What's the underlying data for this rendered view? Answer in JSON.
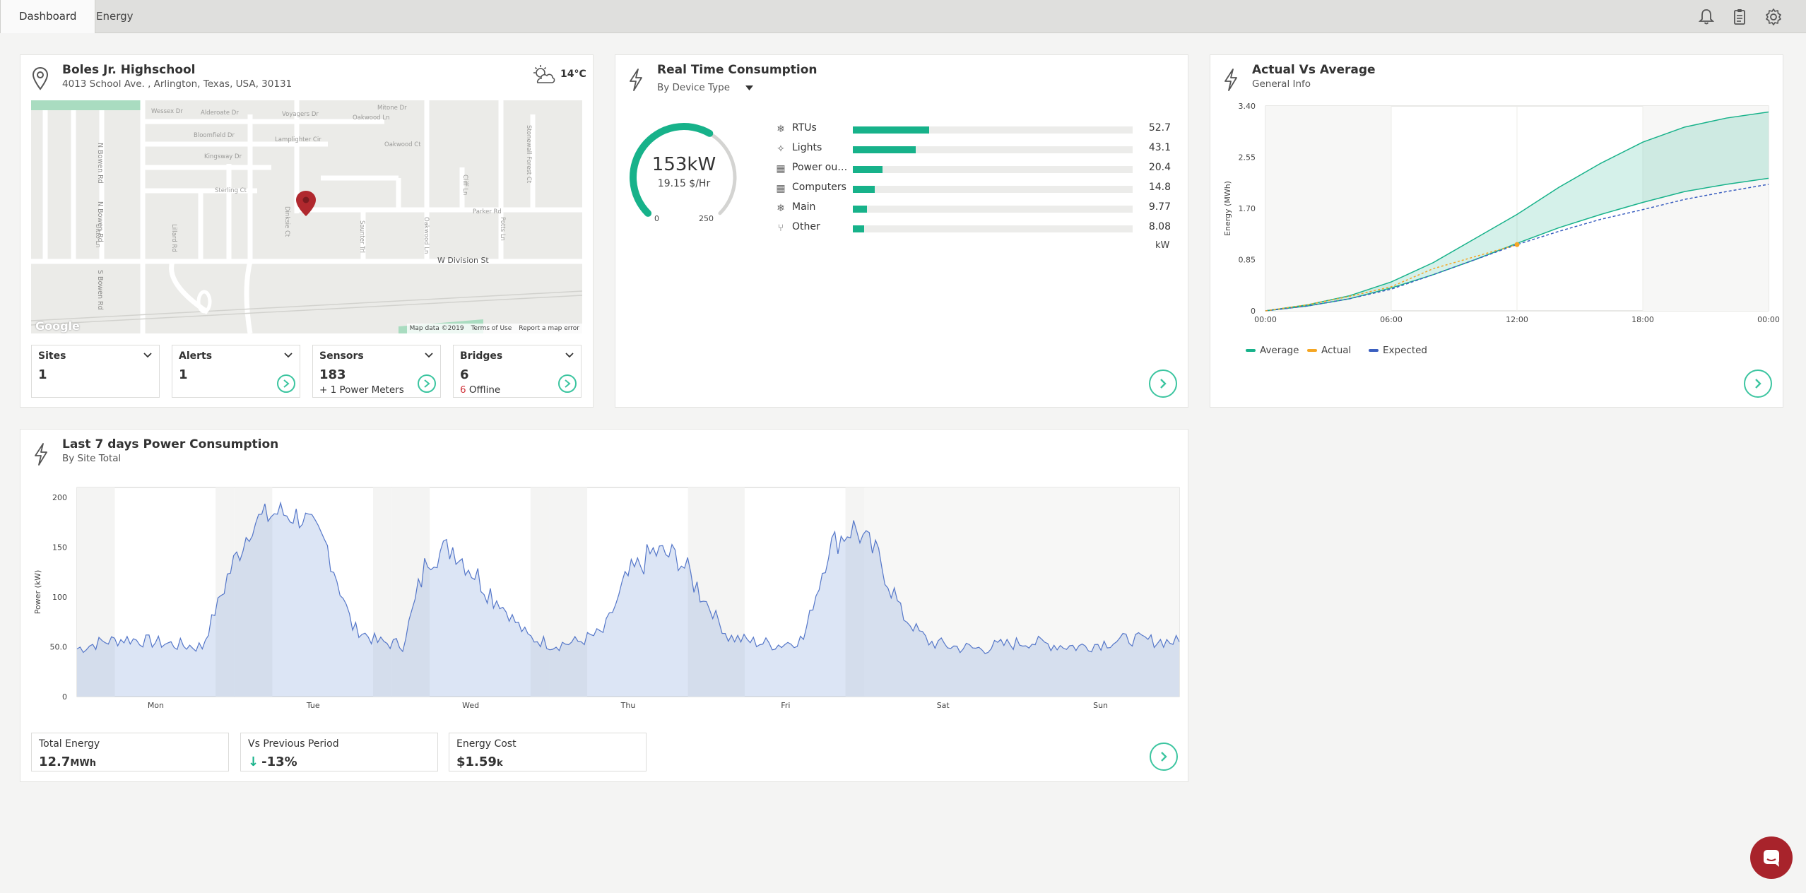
{
  "tabs": [
    {
      "label": "Dashboard"
    },
    {
      "label": "Energy"
    }
  ],
  "site": {
    "name": "Boles Jr. Highschool",
    "address": "4013 School Ave. , Arlington, Texas, USA, 30131",
    "weather_icon": "partly-cloudy-icon",
    "temperature": "14°C"
  },
  "map": {
    "streets": [
      "Wessex Dr",
      "Alderoate Dr",
      "Voyagers Dr",
      "Mitone Dr",
      "Oakwood Ln",
      "Oxbow Ln",
      "Bloomfield Dr",
      "Lamplighter Cir",
      "Oakwood Ct",
      "Kingsway Dr",
      "N Bowen Rd",
      "Sterling Ct",
      "Dinksie Ct",
      "Parker Rd",
      "W Division St",
      "S Bowen Rd",
      "Cliff Ln",
      "Ditto Ln",
      "Lillard Rd",
      "Oakwood Ln",
      "Saunter Trl",
      "Potts Ln",
      "Stonewall Forest Ct"
    ],
    "google_label": "Google",
    "map_data": "Map data ©2019",
    "terms": "Terms of Use",
    "report": "Report a map error"
  },
  "stats": [
    {
      "label": "Sites",
      "value": "1",
      "extra": ""
    },
    {
      "label": "Alerts",
      "value": "1",
      "extra": ""
    },
    {
      "label": "Sensors",
      "value": "183",
      "extra": "+ 1 Power Meters"
    },
    {
      "label": "Bridges",
      "value": "6",
      "extra_count": "6",
      "extra": "Offline"
    }
  ],
  "realtime": {
    "title": "Real Time Consumption",
    "selector": "By Device Type",
    "gauge_value": "153kW",
    "gauge_cost": "19.15 $/Hr",
    "gauge_min": "0",
    "gauge_max": "250",
    "gauge_fraction": 0.612,
    "unit": "kW",
    "devices": [
      {
        "name": "RTUs",
        "value": "52.7",
        "icon": "snowflake-icon",
        "fraction": 0.21
      },
      {
        "name": "Lights",
        "value": "43.1",
        "icon": "lightbulb-icon",
        "fraction": 0.172
      },
      {
        "name": "Power outl...",
        "value": "20.4",
        "icon": "building-icon",
        "fraction": 0.082
      },
      {
        "name": "Computers",
        "value": "14.8",
        "icon": "building-icon",
        "fraction": 0.06
      },
      {
        "name": "Main",
        "value": "9.77",
        "icon": "snowflake-icon",
        "fraction": 0.039
      },
      {
        "name": "Other",
        "value": "8.08",
        "icon": "utensils-icon",
        "fraction": 0.032
      }
    ]
  },
  "actual_vs_average": {
    "title": "Actual Vs Average",
    "subtitle": "General Info",
    "legend": [
      {
        "label": "Average",
        "color": "#17b28a"
      },
      {
        "label": "Actual",
        "color": "#f5a623"
      },
      {
        "label": "Expected",
        "color": "#3b5fc0"
      }
    ]
  },
  "weekly": {
    "title": "Last 7 days Power Consumption",
    "subtitle": "By Site Total",
    "summary": [
      {
        "label": "Total Energy",
        "value": "12.7",
        "unit": "MWh"
      },
      {
        "label": "Vs Previous Period",
        "value": "-13%",
        "arrow": "↓"
      },
      {
        "label": "Energy Cost",
        "value": "$1.59",
        "unit": "k"
      }
    ]
  },
  "chart_data": [
    {
      "type": "area",
      "title": "Actual Vs Average",
      "ylabel": "Energy (MWh)",
      "xlabel": "",
      "x": [
        "00:00",
        "02:00",
        "04:00",
        "06:00",
        "08:00",
        "10:00",
        "12:00",
        "14:00",
        "16:00",
        "18:00",
        "20:00",
        "22:00",
        "24:00"
      ],
      "x_ticks": [
        "00:00",
        "06:00",
        "12:00",
        "18:00",
        "00:00"
      ],
      "y_ticks": [
        "0",
        "0.85",
        "1.70",
        "2.55",
        "3.40"
      ],
      "ylim": [
        0,
        3.4
      ],
      "series": [
        {
          "name": "Average",
          "kind": "band",
          "low": [
            0,
            0.08,
            0.2,
            0.38,
            0.6,
            0.85,
            1.12,
            1.38,
            1.6,
            1.8,
            1.98,
            2.1,
            2.2
          ],
          "high": [
            0,
            0.1,
            0.25,
            0.48,
            0.8,
            1.2,
            1.6,
            2.05,
            2.45,
            2.8,
            3.05,
            3.2,
            3.3
          ]
        },
        {
          "name": "Actual",
          "values": [
            0,
            0.1,
            0.24,
            0.4,
            0.7,
            0.9,
            1.1,
            null,
            null,
            null,
            null,
            null,
            null
          ]
        },
        {
          "name": "Expected",
          "values": [
            0,
            0.08,
            0.2,
            0.36,
            0.6,
            0.85,
            1.1,
            1.32,
            1.52,
            1.68,
            1.85,
            1.98,
            2.1
          ]
        }
      ]
    },
    {
      "type": "area",
      "title": "Last 7 days Power Consumption",
      "ylabel": "Power (kW)",
      "xlabel": "",
      "x": [
        "Mon 00:00",
        "Mon 06:00",
        "Mon 12:00",
        "Mon 18:00",
        "Tue 00:00",
        "Tue 06:00",
        "Tue 08:00",
        "Tue 10:00",
        "Tue 12:00",
        "Tue 14:00",
        "Tue 16:00",
        "Tue 18:00",
        "Wed 00:00",
        "Wed 06:00",
        "Wed 08:00",
        "Wed 10:00",
        "Wed 12:00",
        "Wed 14:00",
        "Wed 16:00",
        "Wed 18:00",
        "Thu 00:00",
        "Thu 06:00",
        "Thu 08:00",
        "Thu 10:00",
        "Thu 12:00",
        "Thu 14:00",
        "Thu 16:00",
        "Thu 18:00",
        "Fri 00:00",
        "Fri 06:00",
        "Fri 08:00",
        "Fri 10:00",
        "Fri 12:00",
        "Fri 14:00",
        "Fri 16:00",
        "Fri 18:00",
        "Sat 00:00",
        "Sat 06:00",
        "Sat 12:00",
        "Sat 18:00",
        "Sun 00:00",
        "Sun 06:00",
        "Sun 12:00",
        "Sun 18:00",
        "Mon 00:00"
      ],
      "x_ticks": [
        "Mon",
        "Tue",
        "Wed",
        "Thu",
        "Fri",
        "Sat",
        "Sun"
      ],
      "y_ticks": [
        "0",
        "50.0",
        "100",
        "150",
        "200"
      ],
      "ylim": [
        0,
        210
      ],
      "series": [
        {
          "name": "Power",
          "values": [
            48,
            55,
            58,
            55,
            52,
            50,
            120,
            175,
            185,
            180,
            150,
            70,
            55,
            52,
            140,
            150,
            120,
            90,
            60,
            52,
            55,
            65,
            120,
            145,
            140,
            100,
            60,
            55,
            52,
            58,
            150,
            170,
            140,
            80,
            55,
            50,
            48,
            52,
            55,
            52,
            50,
            54,
            58,
            56,
            55
          ]
        }
      ]
    }
  ]
}
